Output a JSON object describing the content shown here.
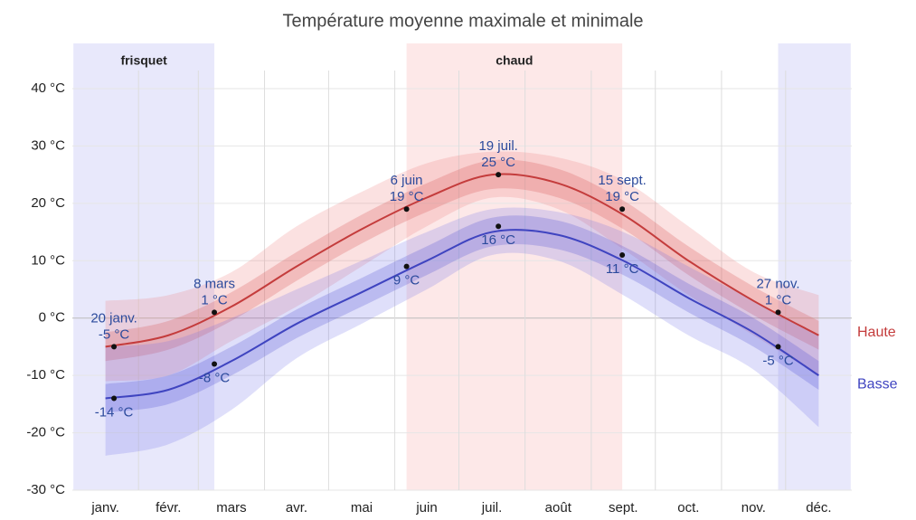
{
  "chart_data": {
    "type": "line",
    "title": "Température moyenne maximale et minimale",
    "categories": [
      "janv.",
      "févr.",
      "mars",
      "avr.",
      "mai",
      "juin",
      "juil.",
      "août",
      "sept.",
      "oct.",
      "nov.",
      "déc."
    ],
    "series": [
      {
        "name": "Haute",
        "color": "#c43c3c",
        "values": [
          -5,
          -3,
          2,
          9,
          15.5,
          21,
          25,
          23.5,
          18,
          10,
          3,
          -3
        ]
      },
      {
        "name": "Basse",
        "color": "#3f44c0",
        "values": [
          -14,
          -12.5,
          -7.5,
          -1,
          4.5,
          10,
          15,
          14.5,
          10,
          3.5,
          -2.5,
          -10
        ]
      }
    ],
    "bands": [
      {
        "color": "rgba(235,120,120,0.22)",
        "low": [
          -11,
          -10,
          -4,
          2,
          9,
          16,
          21,
          19,
          12,
          4,
          -3,
          -10
        ],
        "high": [
          3,
          4,
          8,
          16,
          22,
          27,
          29,
          28,
          24,
          16,
          8,
          4
        ]
      },
      {
        "color": "rgba(215,80,80,0.25)",
        "low": [
          -7.5,
          -5.5,
          -0.5,
          6.5,
          13,
          18.5,
          22.5,
          21,
          15.5,
          7.5,
          0.5,
          -5.5
        ],
        "high": [
          -2.5,
          -0.5,
          4.5,
          11.5,
          18,
          23.5,
          27.5,
          26,
          20.5,
          12.5,
          5.5,
          -0.5
        ]
      },
      {
        "color": "rgba(110,110,230,0.22)",
        "low": [
          -24,
          -22,
          -16,
          -7,
          -1,
          5,
          11,
          10,
          4,
          -3,
          -9,
          -19
        ],
        "high": [
          -5,
          -4,
          0,
          5,
          10,
          15,
          19,
          18.5,
          15,
          9,
          3,
          -3
        ]
      },
      {
        "color": "rgba(80,80,210,0.25)",
        "low": [
          -16.5,
          -15,
          -10,
          -3.5,
          2,
          7.5,
          12.5,
          12,
          7.5,
          1,
          -5,
          -12.5
        ],
        "high": [
          -11.5,
          -10,
          -5,
          1.5,
          7,
          12.5,
          17.5,
          17,
          12.5,
          6,
          0,
          -7.5
        ]
      }
    ],
    "annotations": [
      {
        "series": 0,
        "month": 0,
        "day": 20,
        "date": "20 janv.",
        "value": -5,
        "label": "-5 °C",
        "position": "above"
      },
      {
        "series": 1,
        "month": 0,
        "day": 20,
        "value": -14,
        "label": "-14 °C",
        "position": "below"
      },
      {
        "series": 0,
        "month": 2,
        "day": 8,
        "date": "8 mars",
        "value": 1,
        "label": "1 °C",
        "position": "above"
      },
      {
        "series": 1,
        "month": 2,
        "day": 8,
        "value": -8,
        "label": "-8 °C",
        "position": "below"
      },
      {
        "series": 0,
        "month": 5,
        "day": 6,
        "date": "6 juin",
        "value": 19,
        "label": "19 °C",
        "position": "above"
      },
      {
        "series": 1,
        "month": 5,
        "day": 6,
        "value": 9,
        "label": "9 °C",
        "position": "below"
      },
      {
        "series": 0,
        "month": 6,
        "day": 19,
        "date": "19 juil.",
        "value": 25,
        "label": "25 °C",
        "position": "above"
      },
      {
        "series": 1,
        "month": 6,
        "day": 19,
        "value": 16,
        "label": "16 °C",
        "position": "below"
      },
      {
        "series": 0,
        "month": 8,
        "day": 15,
        "date": "15 sept.",
        "value": 19,
        "label": "19 °C",
        "position": "above"
      },
      {
        "series": 1,
        "month": 8,
        "day": 15,
        "value": 11,
        "label": "11 °C",
        "position": "below"
      },
      {
        "series": 0,
        "month": 10,
        "day": 27,
        "date": "27 nov.",
        "value": 1,
        "label": "1 °C",
        "position": "above"
      },
      {
        "series": 1,
        "month": 10,
        "day": 27,
        "value": -5,
        "label": "-5 °C",
        "position": "below"
      }
    ],
    "seasons": [
      {
        "label": "frisquet",
        "color": "#e8e8fb",
        "ranges": [
          {
            "from": {
              "month": 0,
              "day": 1
            },
            "to": {
              "month": 2,
              "day": 8
            }
          },
          {
            "from": {
              "month": 10,
              "day": 27
            },
            "to": {
              "month": 11,
              "day": 31
            }
          }
        ]
      },
      {
        "label": "chaud",
        "color": "#fde8e8",
        "ranges": [
          {
            "from": {
              "month": 5,
              "day": 6
            },
            "to": {
              "month": 8,
              "day": 15
            }
          }
        ]
      }
    ],
    "ylim": [
      -30,
      40
    ],
    "yticks": [
      {
        "value": -30,
        "label": "-30 °C"
      },
      {
        "value": -20,
        "label": "-20 °C"
      },
      {
        "value": -10,
        "label": "-10 °C"
      },
      {
        "value": 0,
        "label": "0 °C"
      },
      {
        "value": 10,
        "label": "10 °C"
      },
      {
        "value": 20,
        "label": "20 °C"
      },
      {
        "value": 30,
        "label": "30 °C"
      },
      {
        "value": 40,
        "label": "40 °C"
      }
    ],
    "grid": true
  }
}
